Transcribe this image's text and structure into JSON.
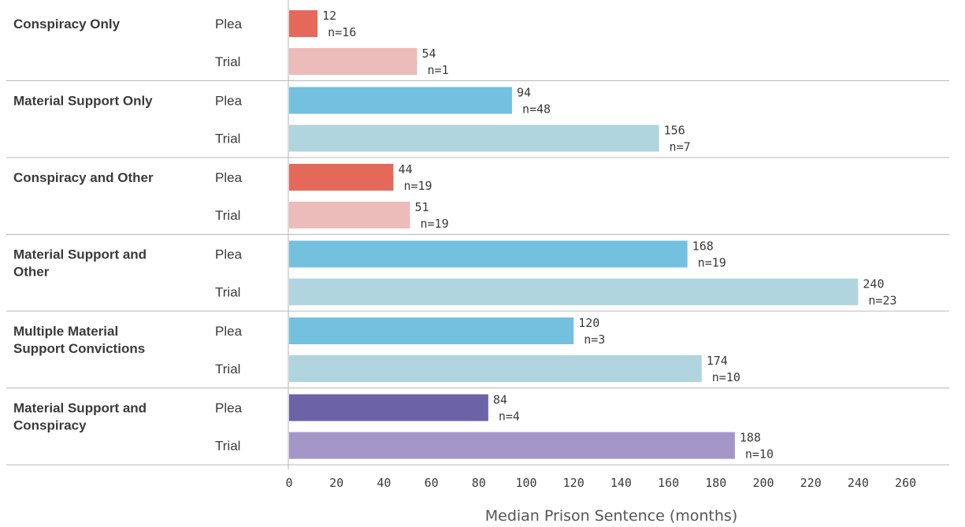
{
  "chart_data": {
    "type": "bar",
    "orientation": "horizontal",
    "xlabel": "Median Prison Sentence (months)",
    "xlim": [
      0,
      260
    ],
    "xticks": [
      0,
      20,
      40,
      60,
      80,
      100,
      120,
      140,
      160,
      180,
      200,
      220,
      240,
      260
    ],
    "grid": false,
    "groups": [
      {
        "label": [
          "Conspiracy Only"
        ],
        "bars": [
          {
            "type": "Plea",
            "value": 12,
            "n": "n=16",
            "color": "#e5695a"
          },
          {
            "type": "Trial",
            "value": 54,
            "n": "n=1",
            "color": "#ecbcbb"
          }
        ]
      },
      {
        "label": [
          "Material Support Only"
        ],
        "bars": [
          {
            "type": "Plea",
            "value": 94,
            "n": "n=48",
            "color": "#74c1df"
          },
          {
            "type": "Trial",
            "value": 156,
            "n": "n=7",
            "color": "#b0d5de"
          }
        ]
      },
      {
        "label": [
          "Conspiracy and Other"
        ],
        "bars": [
          {
            "type": "Plea",
            "value": 44,
            "n": "n=19",
            "color": "#e5695a"
          },
          {
            "type": "Trial",
            "value": 51,
            "n": "n=19",
            "color": "#ecbcbb"
          }
        ]
      },
      {
        "label": [
          "Material Support and",
          "Other"
        ],
        "bars": [
          {
            "type": "Plea",
            "value": 168,
            "n": "n=19",
            "color": "#74c1df"
          },
          {
            "type": "Trial",
            "value": 240,
            "n": "n=23",
            "color": "#b0d5de"
          }
        ]
      },
      {
        "label": [
          "Multiple Material",
          "Support Convictions"
        ],
        "bars": [
          {
            "type": "Plea",
            "value": 120,
            "n": "n=3",
            "color": "#74c1df"
          },
          {
            "type": "Trial",
            "value": 174,
            "n": "n=10",
            "color": "#b0d5de"
          }
        ]
      },
      {
        "label": [
          "Material Support and",
          "Conspiracy"
        ],
        "bars": [
          {
            "type": "Plea",
            "value": 84,
            "n": "n=4",
            "color": "#6c63a6"
          },
          {
            "type": "Trial",
            "value": 188,
            "n": "n=10",
            "color": "#a596c8"
          }
        ]
      }
    ]
  }
}
